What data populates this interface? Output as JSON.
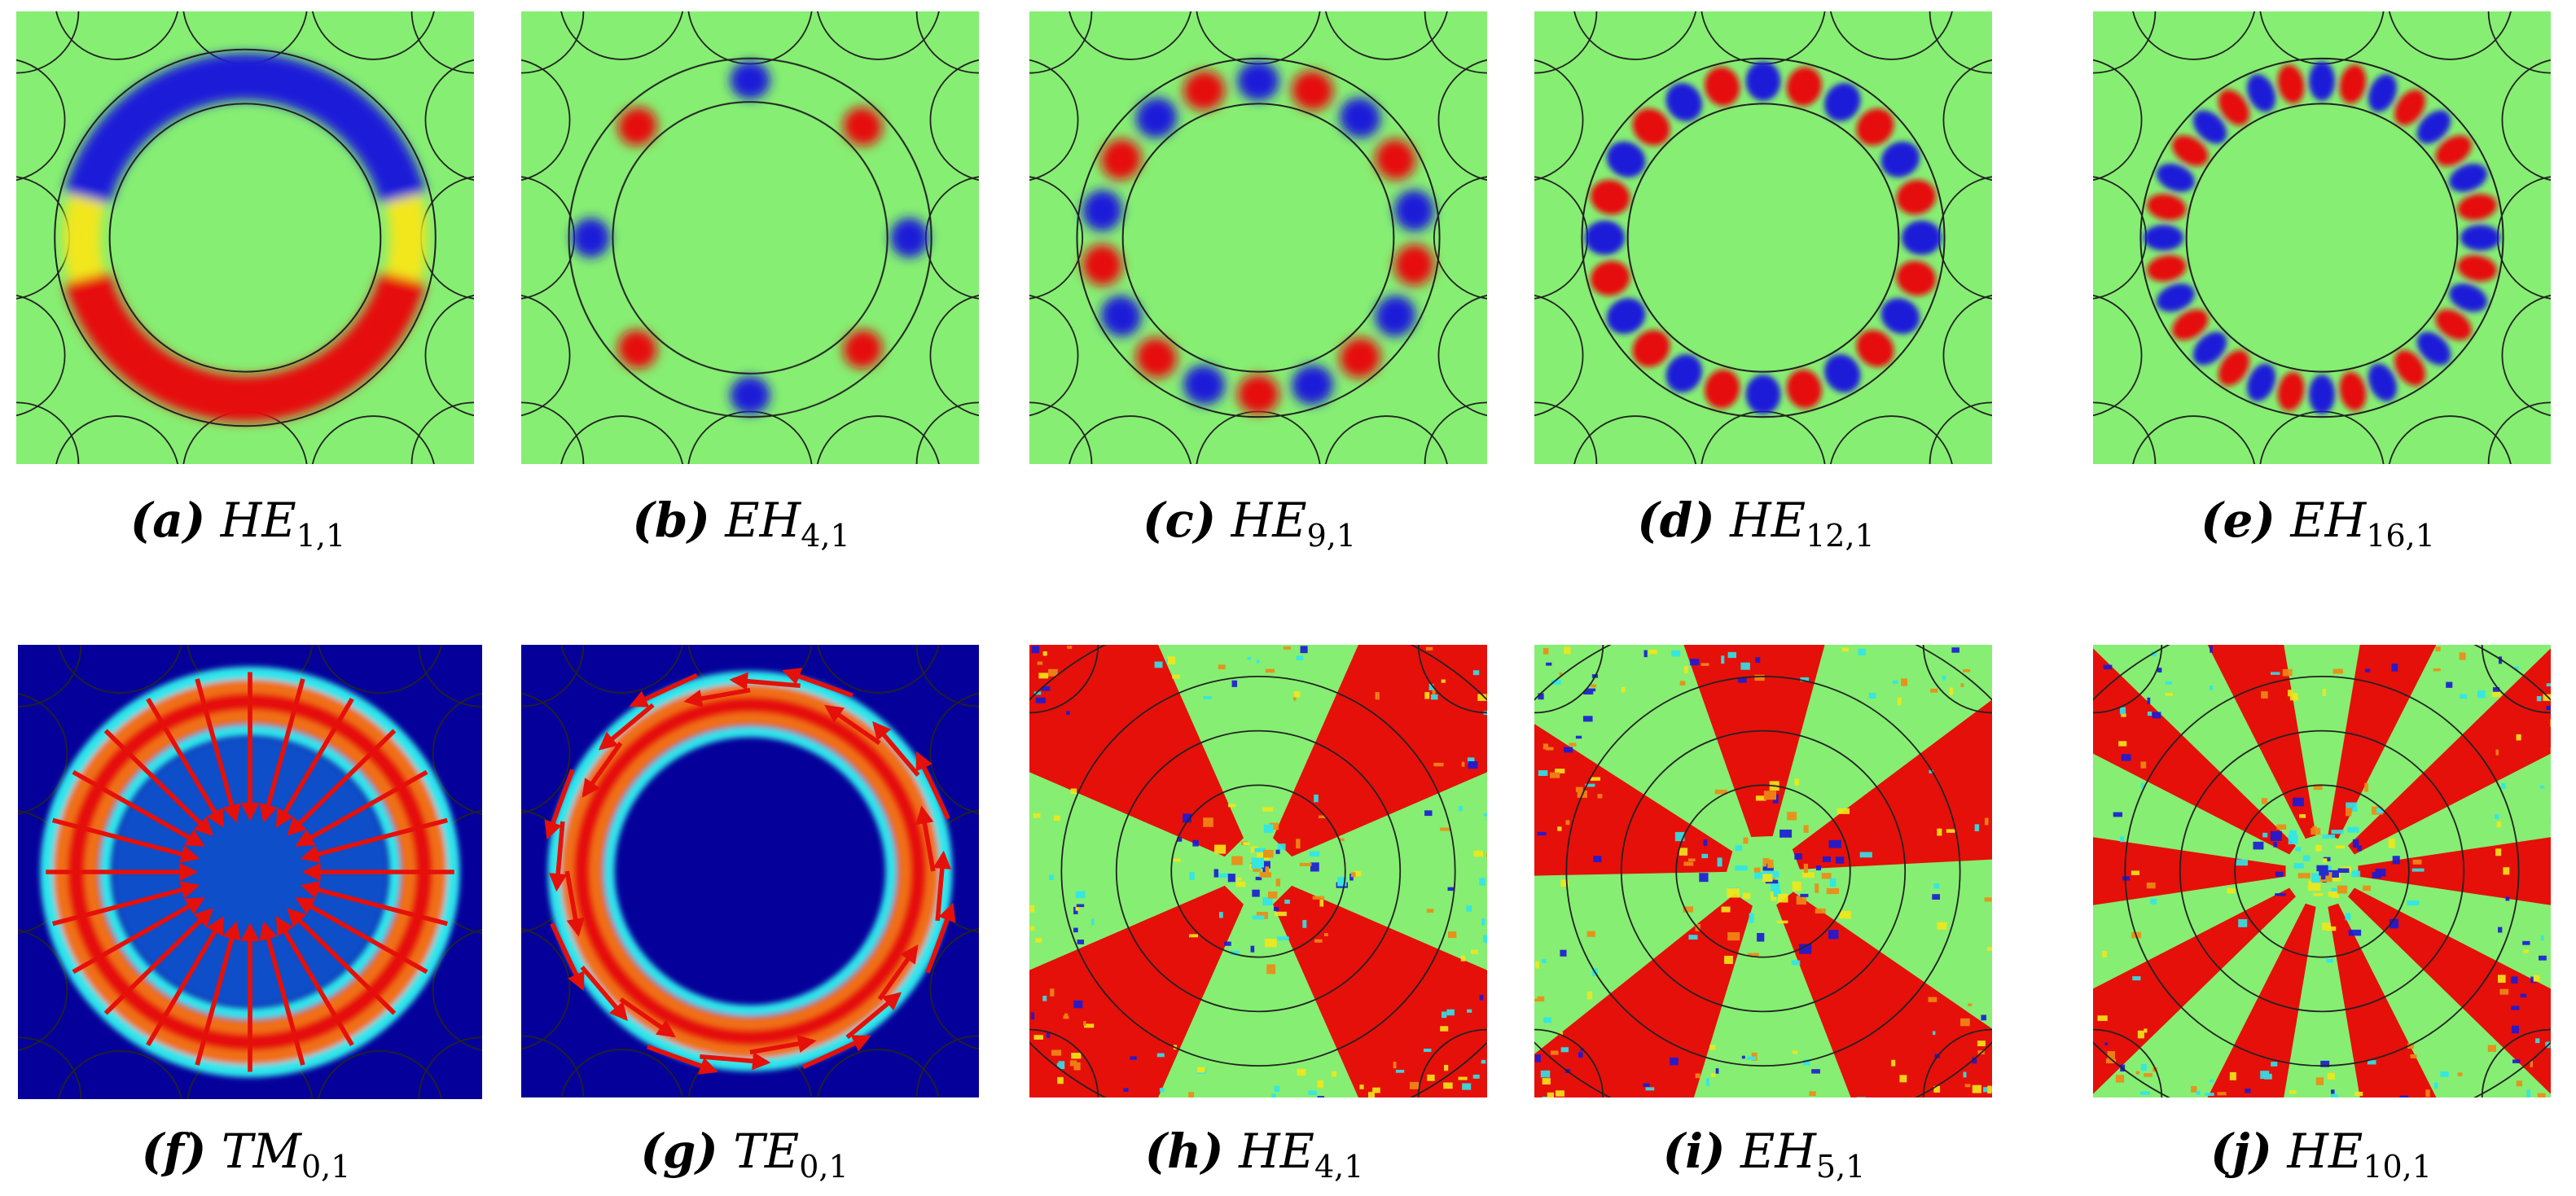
{
  "colors": {
    "green_bg": "#86ee72",
    "dark_bg": "#06009a",
    "red": "#e5100a",
    "blue": "#1a1ad8",
    "cyan": "#2ee6ec",
    "yellow": "#f2e71a",
    "line": "#222222"
  },
  "panels": [
    {
      "letter": "(a)",
      "mode": "HE",
      "sub": "1,1",
      "kind": "ring",
      "lobes": 1
    },
    {
      "letter": "(b)",
      "mode": "EH",
      "sub": "4,1",
      "kind": "ring",
      "lobes": 4
    },
    {
      "letter": "(c)",
      "mode": "HE",
      "sub": "9,1",
      "kind": "ring",
      "lobes": 9
    },
    {
      "letter": "(d)",
      "mode": "HE",
      "sub": "12,1",
      "kind": "ring",
      "lobes": 12
    },
    {
      "letter": "(e)",
      "mode": "EH",
      "sub": "16,1",
      "kind": "ring",
      "lobes": 16
    },
    {
      "letter": "(f)",
      "mode": "TM",
      "sub": "0,1",
      "kind": "radial",
      "lobes": 0
    },
    {
      "letter": "(g)",
      "mode": "TE",
      "sub": "0,1",
      "kind": "azimuthal",
      "lobes": 0
    },
    {
      "letter": "(h)",
      "mode": "HE",
      "sub": "4,1",
      "kind": "petals",
      "lobes": 4
    },
    {
      "letter": "(i)",
      "mode": "EH",
      "sub": "5,1",
      "kind": "petals",
      "lobes": 5
    },
    {
      "letter": "(j)",
      "mode": "HE",
      "sub": "10,1",
      "kind": "petals",
      "lobes": 10
    }
  ]
}
